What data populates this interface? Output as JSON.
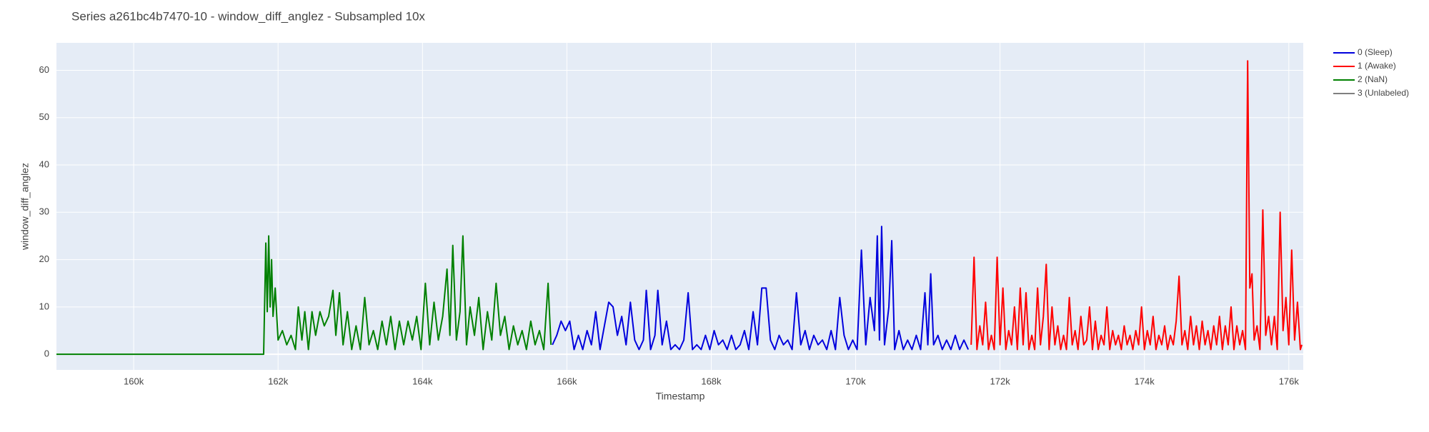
{
  "chart_data": {
    "type": "line",
    "title": "Series a261bc4b7470-10 - window_diff_anglez - Subsampled 10x",
    "x_label": "Timestamp",
    "y_label": "window_diff_anglez",
    "xlim": [
      158930,
      176200
    ],
    "ylim": [
      -3.3,
      65.8
    ],
    "xticks": [
      {
        "value": 160000,
        "label": "160k"
      },
      {
        "value": 162000,
        "label": "162k"
      },
      {
        "value": 164000,
        "label": "164k"
      },
      {
        "value": 166000,
        "label": "166k"
      },
      {
        "value": 168000,
        "label": "168k"
      },
      {
        "value": 170000,
        "label": "170k"
      },
      {
        "value": 172000,
        "label": "172k"
      },
      {
        "value": 174000,
        "label": "174k"
      },
      {
        "value": 176000,
        "label": "176k"
      }
    ],
    "yticks": [
      0,
      10,
      20,
      30,
      40,
      50,
      60
    ],
    "grid": true,
    "legend": "right",
    "series": [
      {
        "name": "0 (Sleep)",
        "color": "#0000dd",
        "x": [
          165800,
          165860,
          165920,
          165980,
          166040,
          166100,
          166160,
          166220,
          166280,
          166340,
          166400,
          166460,
          166520,
          166580,
          166640,
          166700,
          166760,
          166820,
          166880,
          166940,
          167000,
          167060,
          167100,
          167160,
          167220,
          167260,
          167320,
          167380,
          167440,
          167500,
          167560,
          167620,
          167680,
          167740,
          167800,
          167860,
          167920,
          167980,
          168040,
          168100,
          168160,
          168220,
          168280,
          168340,
          168400,
          168460,
          168520,
          168580,
          168640,
          168700,
          168760,
          168820,
          168880,
          168940,
          169000,
          169060,
          169120,
          169180,
          169240,
          169300,
          169360,
          169420,
          169480,
          169540,
          169600,
          169660,
          169720,
          169780,
          169840,
          169900,
          169960,
          170020,
          170080,
          170140,
          170200,
          170260,
          170300,
          170330,
          170360,
          170400,
          170460,
          170500,
          170540,
          170600,
          170660,
          170720,
          170780,
          170840,
          170900,
          170960,
          171000,
          171040,
          171080,
          171140,
          171200,
          171260,
          171320,
          171380,
          171440,
          171500,
          171560
        ],
        "values": [
          2,
          4,
          7,
          5,
          7,
          1,
          4,
          1,
          5,
          2,
          9,
          1,
          6,
          11,
          10,
          4,
          8,
          2,
          11,
          3,
          1,
          3,
          13.5,
          1,
          4,
          13.5,
          2,
          7,
          1,
          2,
          1,
          3,
          13,
          1,
          2,
          1,
          4,
          1,
          5,
          2,
          3,
          1,
          4,
          1,
          2,
          5,
          1,
          9,
          2,
          14,
          14,
          3,
          1,
          4,
          2,
          3,
          1,
          13,
          2,
          5,
          1,
          4,
          2,
          3,
          1,
          5,
          1,
          12,
          4,
          1,
          3,
          1,
          22,
          2,
          12,
          5,
          25,
          3,
          27,
          2,
          10,
          24,
          1,
          5,
          1,
          3,
          1,
          4,
          1,
          13,
          2,
          17,
          2,
          4,
          1,
          3,
          1,
          4,
          1,
          3,
          1
        ]
      },
      {
        "name": "1 (Awake)",
        "color": "#ff0000",
        "x": [
          171600,
          171640,
          171680,
          171720,
          171760,
          171800,
          171840,
          171880,
          171920,
          171960,
          172000,
          172040,
          172080,
          172120,
          172160,
          172200,
          172240,
          172280,
          172320,
          172360,
          172400,
          172440,
          172480,
          172520,
          172560,
          172600,
          172640,
          172680,
          172720,
          172760,
          172800,
          172840,
          172880,
          172920,
          172960,
          173000,
          173040,
          173080,
          173120,
          173160,
          173200,
          173240,
          173280,
          173320,
          173360,
          173400,
          173440,
          173480,
          173520,
          173560,
          173600,
          173640,
          173680,
          173720,
          173760,
          173800,
          173840,
          173880,
          173920,
          173960,
          174000,
          174040,
          174080,
          174120,
          174160,
          174200,
          174240,
          174280,
          174320,
          174360,
          174400,
          174440,
          174480,
          174520,
          174560,
          174600,
          174640,
          174680,
          174720,
          174760,
          174800,
          174840,
          174880,
          174920,
          174960,
          175000,
          175040,
          175080,
          175120,
          175160,
          175200,
          175240,
          175280,
          175320,
          175360,
          175400,
          175430,
          175460,
          175490,
          175520,
          175560,
          175600,
          175640,
          175680,
          175720,
          175760,
          175800,
          175840,
          175880,
          175920,
          175960,
          176000,
          176040,
          176080,
          176120,
          176160,
          176180
        ],
        "values": [
          2,
          20.5,
          1,
          6,
          2,
          11,
          1,
          4,
          1,
          20.5,
          2,
          14,
          1,
          5,
          2,
          10,
          1,
          14,
          2,
          13,
          1,
          4,
          1,
          14,
          2,
          8,
          19,
          1,
          10,
          2,
          6,
          1,
          4,
          1,
          12,
          2,
          5,
          1,
          8,
          2,
          3,
          10,
          1,
          7,
          1,
          4,
          2,
          10,
          1,
          5,
          2,
          4,
          1,
          6,
          2,
          4,
          1,
          5,
          2,
          10,
          1,
          5,
          2,
          8,
          1,
          4,
          2,
          6,
          1,
          4,
          2,
          7,
          16.5,
          2,
          5,
          1,
          8,
          2,
          6,
          1,
          7,
          2,
          5,
          1,
          6,
          2,
          8,
          1,
          6,
          2,
          10,
          1,
          6,
          2,
          5,
          1,
          62,
          14,
          17,
          3,
          6,
          1,
          30.5,
          4,
          8,
          2,
          8,
          1,
          30,
          5,
          12,
          2,
          22,
          3,
          11,
          1,
          2
        ]
      },
      {
        "name": "2 (NaN)",
        "color": "#008000",
        "x": [
          158930,
          161750,
          161800,
          161830,
          161850,
          161870,
          161890,
          161910,
          161930,
          161960,
          162000,
          162060,
          162120,
          162180,
          162240,
          162280,
          162330,
          162370,
          162420,
          162470,
          162520,
          162580,
          162640,
          162700,
          162760,
          162800,
          162850,
          162900,
          162960,
          163020,
          163080,
          163140,
          163200,
          163260,
          163320,
          163380,
          163440,
          163500,
          163560,
          163620,
          163680,
          163740,
          163800,
          163860,
          163920,
          163980,
          164040,
          164100,
          164160,
          164220,
          164280,
          164340,
          164380,
          164420,
          164470,
          164520,
          164560,
          164610,
          164660,
          164720,
          164780,
          164840,
          164900,
          164960,
          165020,
          165080,
          165140,
          165200,
          165260,
          165320,
          165380,
          165440,
          165500,
          165560,
          165620,
          165680,
          165740,
          165780
        ],
        "values": [
          0,
          0,
          0,
          23.5,
          9,
          25,
          10,
          20,
          8,
          14,
          3,
          5,
          2,
          4,
          1,
          10,
          3,
          9,
          1,
          9,
          4,
          9,
          6,
          8,
          13.5,
          4,
          13,
          2,
          9,
          1,
          6,
          1,
          12,
          2,
          5,
          1,
          7,
          2,
          8,
          1,
          7,
          2,
          7,
          3,
          8,
          1,
          15,
          2,
          11,
          3,
          8,
          18,
          4,
          23,
          3,
          9,
          25,
          2,
          10,
          4,
          12,
          1,
          9,
          3,
          15,
          4,
          8,
          1,
          6,
          2,
          5,
          1,
          7,
          2,
          5,
          1,
          15,
          2
        ]
      },
      {
        "name": "3 (Unlabeled)",
        "color": "#808080",
        "x": [],
        "values": []
      }
    ]
  }
}
